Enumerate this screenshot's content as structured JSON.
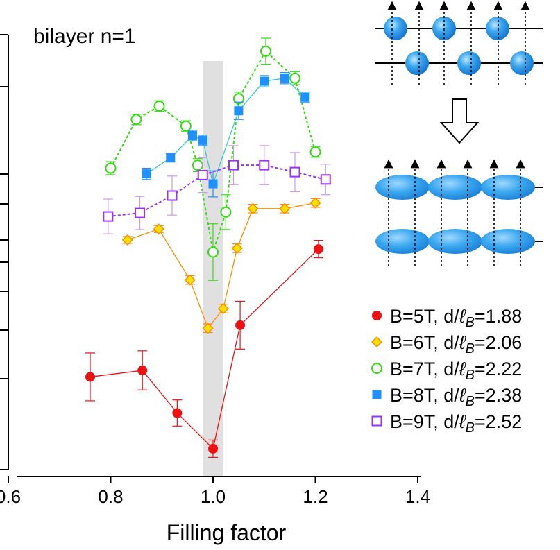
{
  "chart_data": {
    "type": "scatter",
    "title": "bilayer n=1",
    "xlabel": "Filling factor",
    "ylabel": "",
    "xlim": [
      0.6,
      1.4
    ],
    "xticks": [
      "0.6",
      "0.8",
      "1.0",
      "1.2",
      "1.4"
    ],
    "ylim": [
      0,
      1
    ],
    "y_tick_labels_shown": false,
    "highlight_band_x": [
      0.98,
      1.02
    ],
    "legend_position": "right",
    "series": [
      {
        "name": "B=5T, d/ℓB=1.88",
        "legend_prefix": "B=5T, d/",
        "legend_script": "B",
        "legend_suffix": "=1.88",
        "color": "#ee1111",
        "marker": "circle-filled",
        "line": "solid",
        "points": [
          {
            "x": 0.76,
            "y": 0.213,
            "err": 0.055
          },
          {
            "x": 0.862,
            "y": 0.228,
            "err": 0.045
          },
          {
            "x": 0.93,
            "y": 0.13,
            "err": 0.03
          },
          {
            "x": 1.0,
            "y": 0.048,
            "err": 0.02
          },
          {
            "x": 1.053,
            "y": 0.332,
            "err": 0.055
          },
          {
            "x": 1.206,
            "y": 0.507,
            "err": 0.02
          }
        ]
      },
      {
        "name": "B=6T, d/ℓB=2.06",
        "legend_prefix": "B=6T, d/",
        "legend_script": "B",
        "legend_suffix": "=2.06",
        "color": "#ff8c00",
        "fill": "#ffe000",
        "marker": "diamond",
        "line": "solid",
        "points": [
          {
            "x": 0.833,
            "y": 0.528,
            "err": 0.008
          },
          {
            "x": 0.894,
            "y": 0.553,
            "err": 0.008
          },
          {
            "x": 0.955,
            "y": 0.436,
            "err": 0.01
          },
          {
            "x": 0.99,
            "y": 0.325,
            "err": 0.01
          },
          {
            "x": 1.02,
            "y": 0.37,
            "err": 0.01
          },
          {
            "x": 1.047,
            "y": 0.509,
            "err": 0.01
          },
          {
            "x": 1.078,
            "y": 0.6,
            "err": 0.01
          },
          {
            "x": 1.14,
            "y": 0.6,
            "err": 0.01
          },
          {
            "x": 1.2,
            "y": 0.613,
            "err": 0.01
          }
        ]
      },
      {
        "name": "B=7T, d/ℓB=2.22",
        "legend_prefix": "B=7T, d/",
        "legend_script": "B",
        "legend_suffix": "=2.22",
        "color": "#33dd11",
        "marker": "circle-open",
        "line": "dashed",
        "points": [
          {
            "x": 0.8,
            "y": 0.693,
            "err": 0.015
          },
          {
            "x": 0.85,
            "y": 0.805,
            "err": 0.012
          },
          {
            "x": 0.895,
            "y": 0.836,
            "err": 0.012
          },
          {
            "x": 0.947,
            "y": 0.79,
            "err": 0.012
          },
          {
            "x": 0.97,
            "y": 0.7,
            "err": 0.015
          },
          {
            "x": 1.0,
            "y": 0.5,
            "err": 0.065
          },
          {
            "x": 1.025,
            "y": 0.592,
            "err": 0.04
          },
          {
            "x": 1.05,
            "y": 0.853,
            "err": 0.015
          },
          {
            "x": 1.103,
            "y": 0.962,
            "err": 0.03
          },
          {
            "x": 1.16,
            "y": 0.9,
            "err": 0.015
          },
          {
            "x": 1.2,
            "y": 0.73,
            "err": 0.012
          }
        ]
      },
      {
        "name": "B=8T, d/ℓB=2.38",
        "legend_prefix": "B=8T, d/",
        "legend_script": "B",
        "legend_suffix": "=2.38",
        "color": "#1e90ff",
        "marker": "square-filled",
        "line": "solid",
        "lineColor": "#33cccc",
        "points": [
          {
            "x": 0.87,
            "y": 0.68,
            "err": 0.013
          },
          {
            "x": 0.917,
            "y": 0.717,
            "err": 0.01
          },
          {
            "x": 0.96,
            "y": 0.768,
            "err": 0.012
          },
          {
            "x": 0.98,
            "y": 0.757,
            "err": 0.012
          },
          {
            "x": 1.0,
            "y": 0.657,
            "err": 0.03
          },
          {
            "x": 1.05,
            "y": 0.825,
            "err": 0.02
          },
          {
            "x": 1.1,
            "y": 0.893,
            "err": 0.013
          },
          {
            "x": 1.14,
            "y": 0.9,
            "err": 0.013
          },
          {
            "x": 1.18,
            "y": 0.856,
            "err": 0.012
          }
        ]
      },
      {
        "name": "B=9T, d/ℓB=2.52",
        "legend_prefix": "B=9T, d/",
        "legend_script": "B",
        "legend_suffix": "=2.52",
        "color": "#9b30ff",
        "errColor": "#cc99ee",
        "marker": "square-open",
        "line": "dashed",
        "points": [
          {
            "x": 0.795,
            "y": 0.582,
            "err": 0.04
          },
          {
            "x": 0.857,
            "y": 0.59,
            "err": 0.038
          },
          {
            "x": 0.92,
            "y": 0.63,
            "err": 0.045
          },
          {
            "x": 0.98,
            "y": 0.677,
            "err": 0.04
          },
          {
            "x": 1.04,
            "y": 0.7,
            "err": 0.045
          },
          {
            "x": 1.1,
            "y": 0.7,
            "err": 0.045
          },
          {
            "x": 1.16,
            "y": 0.684,
            "err": 0.045
          },
          {
            "x": 1.22,
            "y": 0.667,
            "err": 0.035
          }
        ]
      }
    ]
  }
}
